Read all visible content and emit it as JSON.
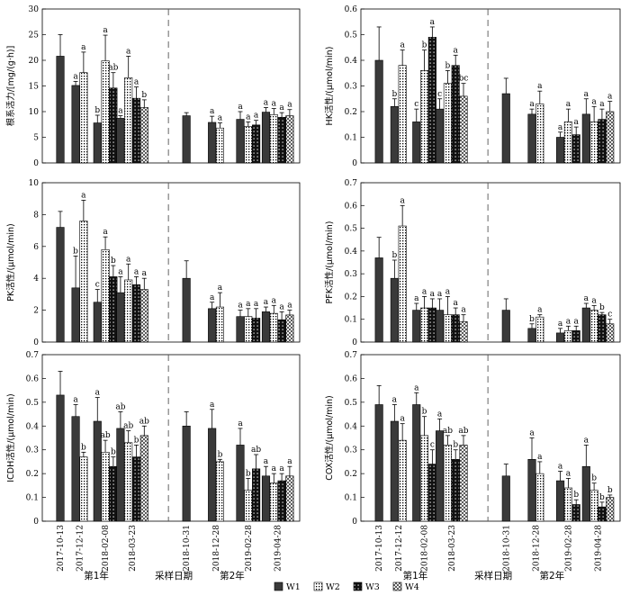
{
  "colors": {
    "W1": "#3a3a3a",
    "W2": "#ffffff",
    "W3": "#111111",
    "W4": "#ffffff"
  },
  "legend": [
    "W1",
    "W2",
    "W3",
    "W4"
  ],
  "dates": [
    "2017-10-13",
    "2017-12-12",
    "2018-02-08",
    "2018-03-23",
    "2018-10-31",
    "2018-12-28",
    "2019-02-28",
    "2019-04-28"
  ],
  "year_labels": [
    "第1年",
    "第2年"
  ],
  "xlabel": "采样日期",
  "chart_data": [
    {
      "type": "bar",
      "ylabel": "根系活力/[mg/(g·h)]",
      "ylim": [
        0,
        30
      ],
      "yticks": [
        0,
        5,
        10,
        15,
        20,
        25,
        30
      ],
      "categories": [
        "2017-10-13",
        "2017-12-12",
        "2018-02-08",
        "2018-03-23",
        "2018-10-31",
        "2018-12-28",
        "2019-02-28",
        "2019-04-28"
      ],
      "series": [
        {
          "name": "W1",
          "values": [
            20.8,
            15.1,
            7.8,
            8.7,
            9.2,
            7.9,
            8.5,
            9.9
          ],
          "errors": [
            4.2,
            0.8,
            1.5,
            0.5,
            0.6,
            1.2,
            1.5,
            0.9
          ],
          "letters": [
            "",
            "a",
            "b",
            "a",
            "",
            "a",
            "a",
            "a"
          ]
        },
        {
          "name": "W2",
          "values": [
            null,
            17.6,
            19.9,
            16.6,
            null,
            6.8,
            7.1,
            9.4
          ],
          "errors": [
            null,
            4.0,
            5.0,
            4.2,
            null,
            1.0,
            0.9,
            1.2
          ],
          "letters": [
            "",
            "a",
            "a",
            "a",
            "",
            "a",
            "a",
            "a"
          ]
        },
        {
          "name": "W3",
          "values": [
            null,
            null,
            14.6,
            12.6,
            null,
            null,
            7.4,
            8.9
          ],
          "errors": [
            null,
            null,
            3.0,
            2.2,
            null,
            null,
            0.9,
            0.9
          ],
          "letters": [
            "",
            "",
            "ab",
            "a",
            "",
            "",
            "a",
            "a"
          ]
        },
        {
          "name": "W4",
          "values": [
            null,
            null,
            null,
            10.8,
            null,
            null,
            null,
            9.2
          ],
          "errors": [
            null,
            null,
            null,
            1.5,
            null,
            null,
            null,
            1.2
          ],
          "letters": [
            "",
            "",
            "",
            "b",
            "",
            "",
            "",
            "a"
          ]
        }
      ]
    },
    {
      "type": "bar",
      "ylabel": "HK活性/(μmol/min)",
      "ylim": [
        0,
        0.6
      ],
      "yticks": [
        0,
        0.1,
        0.2,
        0.3,
        0.4,
        0.5,
        0.6
      ],
      "categories": [
        "2017-10-13",
        "2017-12-12",
        "2018-02-08",
        "2018-03-23",
        "2018-10-31",
        "2018-12-28",
        "2019-02-28",
        "2019-04-28"
      ],
      "series": [
        {
          "name": "W1",
          "values": [
            0.4,
            0.22,
            0.16,
            0.21,
            0.27,
            0.19,
            0.1,
            0.19
          ],
          "errors": [
            0.13,
            0.03,
            0.05,
            0.04,
            0.06,
            0.02,
            0.02,
            0.06
          ],
          "letters": [
            "",
            "b",
            "c",
            "c",
            "",
            "a",
            "a",
            "a"
          ]
        },
        {
          "name": "W2",
          "values": [
            null,
            0.38,
            0.36,
            0.31,
            null,
            0.23,
            0.16,
            0.16
          ],
          "errors": [
            null,
            0.06,
            0.08,
            0.05,
            null,
            0.05,
            0.05,
            0.06
          ],
          "letters": [
            "",
            "a",
            "b",
            "b",
            "",
            "a",
            "a",
            "a"
          ]
        },
        {
          "name": "W3",
          "values": [
            null,
            null,
            0.49,
            0.38,
            null,
            null,
            0.11,
            0.17
          ],
          "errors": [
            null,
            null,
            0.04,
            0.04,
            null,
            null,
            0.03,
            0.04
          ],
          "letters": [
            "",
            "",
            "a",
            "a",
            "",
            "",
            "a",
            "a"
          ]
        },
        {
          "name": "W4",
          "values": [
            null,
            null,
            null,
            0.26,
            null,
            null,
            null,
            0.2
          ],
          "errors": [
            null,
            null,
            null,
            0.05,
            null,
            null,
            null,
            0.04
          ],
          "letters": [
            "",
            "",
            "",
            "bc",
            "",
            "",
            "",
            "a"
          ]
        }
      ]
    },
    {
      "type": "bar",
      "ylabel": "PK活性/(μmol/min)",
      "ylim": [
        0,
        10
      ],
      "yticks": [
        0,
        2,
        4,
        6,
        8,
        10
      ],
      "categories": [
        "2017-10-13",
        "2017-12-12",
        "2018-02-08",
        "2018-03-23",
        "2018-10-31",
        "2018-12-28",
        "2019-02-28",
        "2019-04-28"
      ],
      "series": [
        {
          "name": "W1",
          "values": [
            7.2,
            3.4,
            2.5,
            3.1,
            4.0,
            2.1,
            1.6,
            1.9
          ],
          "errors": [
            1.0,
            2.0,
            0.8,
            1.0,
            1.1,
            0.4,
            0.4,
            0.3
          ],
          "letters": [
            "",
            "b",
            "c",
            "a",
            "",
            "a",
            "a",
            "a"
          ]
        },
        {
          "name": "W2",
          "values": [
            null,
            7.6,
            5.8,
            3.9,
            null,
            2.2,
            1.6,
            1.8
          ],
          "errors": [
            null,
            1.3,
            0.8,
            1.0,
            null,
            0.9,
            0.5,
            0.5
          ],
          "letters": [
            "",
            "a",
            "a",
            "a",
            "",
            "a",
            "a",
            "a"
          ]
        },
        {
          "name": "W3",
          "values": [
            null,
            null,
            4.1,
            3.6,
            null,
            null,
            1.5,
            1.4
          ],
          "errors": [
            null,
            null,
            0.7,
            0.5,
            null,
            null,
            0.6,
            0.5
          ],
          "letters": [
            "",
            "",
            "b",
            "a",
            "",
            "",
            "a",
            "a"
          ]
        },
        {
          "name": "W4",
          "values": [
            null,
            null,
            null,
            3.3,
            null,
            null,
            null,
            1.7
          ],
          "errors": [
            null,
            null,
            null,
            0.7,
            null,
            null,
            null,
            0.3
          ],
          "letters": [
            "",
            "",
            "",
            "a",
            "",
            "",
            "",
            "a"
          ]
        }
      ]
    },
    {
      "type": "bar",
      "ylabel": "PFK活性/(μmol/min)",
      "ylim": [
        0,
        0.7
      ],
      "yticks": [
        0,
        0.1,
        0.2,
        0.3,
        0.4,
        0.5,
        0.6,
        0.7
      ],
      "categories": [
        "2017-10-13",
        "2017-12-12",
        "2018-02-08",
        "2018-03-23",
        "2018-10-31",
        "2018-12-28",
        "2019-02-28",
        "2019-04-28"
      ],
      "series": [
        {
          "name": "W1",
          "values": [
            0.37,
            0.28,
            0.14,
            0.14,
            0.14,
            0.06,
            0.04,
            0.15
          ],
          "errors": [
            0.09,
            0.08,
            0.03,
            0.05,
            0.05,
            0.02,
            0.02,
            0.02
          ],
          "letters": [
            "",
            "b",
            "a",
            "a",
            "",
            "b",
            "a",
            "a"
          ]
        },
        {
          "name": "W2",
          "values": [
            null,
            0.51,
            0.15,
            0.12,
            null,
            0.11,
            0.05,
            0.14
          ],
          "errors": [
            null,
            0.09,
            0.05,
            0.08,
            null,
            0.01,
            0.02,
            0.02
          ],
          "letters": [
            "",
            "a",
            "a",
            "a",
            "",
            "a",
            "a",
            "a"
          ]
        },
        {
          "name": "W3",
          "values": [
            null,
            null,
            0.15,
            0.12,
            null,
            null,
            0.05,
            0.12
          ],
          "errors": [
            null,
            null,
            0.04,
            0.03,
            null,
            null,
            0.02,
            0.01
          ],
          "letters": [
            "",
            "",
            "a",
            "a",
            "",
            "",
            "a",
            "b"
          ]
        },
        {
          "name": "W4",
          "values": [
            null,
            null,
            null,
            0.09,
            null,
            null,
            null,
            0.08
          ],
          "errors": [
            null,
            null,
            null,
            0.03,
            null,
            null,
            null,
            0.02
          ],
          "letters": [
            "",
            "",
            "",
            "a",
            "",
            "",
            "",
            "c"
          ]
        }
      ]
    },
    {
      "type": "bar",
      "ylabel": "ICDH活性/(μmol/min)",
      "ylim": [
        0,
        0.7
      ],
      "yticks": [
        0,
        0.1,
        0.2,
        0.3,
        0.4,
        0.5,
        0.6,
        0.7
      ],
      "categories": [
        "2017-10-13",
        "2017-12-12",
        "2018-02-08",
        "2018-03-23",
        "2018-10-31",
        "2018-12-28",
        "2019-02-28",
        "2019-04-28"
      ],
      "series": [
        {
          "name": "W1",
          "values": [
            0.53,
            0.44,
            0.42,
            0.39,
            0.4,
            0.39,
            0.32,
            0.19
          ],
          "errors": [
            0.1,
            0.05,
            0.1,
            0.07,
            0.06,
            0.08,
            0.07,
            0.04
          ],
          "letters": [
            "",
            "a",
            "a",
            "ab",
            "",
            "a",
            "a",
            "a"
          ]
        },
        {
          "name": "W2",
          "values": [
            null,
            0.27,
            0.29,
            0.33,
            null,
            0.25,
            0.13,
            0.16
          ],
          "errors": [
            null,
            0.02,
            0.05,
            0.05,
            null,
            0.01,
            0.05,
            0.04
          ],
          "letters": [
            "",
            "b",
            "ab",
            "ab",
            "",
            "b",
            "b",
            "a"
          ]
        },
        {
          "name": "W3",
          "values": [
            null,
            null,
            0.23,
            0.27,
            null,
            null,
            0.22,
            0.17
          ],
          "errors": [
            null,
            null,
            0.04,
            0.05,
            null,
            null,
            0.06,
            0.03
          ],
          "letters": [
            "",
            "",
            "b",
            "b",
            "",
            "",
            "ab",
            "a"
          ]
        },
        {
          "name": "W4",
          "values": [
            null,
            null,
            null,
            0.36,
            null,
            null,
            null,
            0.19
          ],
          "errors": [
            null,
            null,
            null,
            0.04,
            null,
            null,
            null,
            0.04
          ],
          "letters": [
            "",
            "",
            "",
            "ab",
            "",
            "",
            "",
            "a"
          ]
        }
      ]
    },
    {
      "type": "bar",
      "ylabel": "COX活性/(μmol/min)",
      "ylim": [
        0,
        0.7
      ],
      "yticks": [
        0,
        0.1,
        0.2,
        0.3,
        0.4,
        0.5,
        0.6,
        0.7
      ],
      "categories": [
        "2017-10-13",
        "2017-12-12",
        "2018-02-08",
        "2018-03-23",
        "2018-10-31",
        "2018-12-28",
        "2019-02-28",
        "2019-04-28"
      ],
      "series": [
        {
          "name": "W1",
          "values": [
            0.49,
            0.42,
            0.49,
            0.38,
            0.19,
            0.26,
            0.17,
            0.23
          ],
          "errors": [
            0.08,
            0.07,
            0.05,
            0.05,
            0.05,
            0.09,
            0.04,
            0.09
          ],
          "letters": [
            "",
            "a",
            "a",
            "a",
            "",
            "a",
            "a",
            "a"
          ]
        },
        {
          "name": "W2",
          "values": [
            null,
            0.34,
            0.36,
            0.32,
            null,
            0.2,
            0.14,
            0.13
          ],
          "errors": [
            null,
            0.07,
            0.08,
            0.04,
            null,
            0.05,
            0.04,
            0.03
          ],
          "letters": [
            "",
            "a",
            "b",
            "ab",
            "",
            "a",
            "a",
            "b"
          ]
        },
        {
          "name": "W3",
          "values": [
            null,
            null,
            0.24,
            0.26,
            null,
            null,
            0.07,
            0.06
          ],
          "errors": [
            null,
            null,
            0.06,
            0.04,
            null,
            null,
            0.02,
            0.02
          ],
          "letters": [
            "",
            "",
            "c",
            "b",
            "",
            "",
            "b",
            "b"
          ]
        },
        {
          "name": "W4",
          "values": [
            null,
            null,
            null,
            0.32,
            null,
            null,
            null,
            0.1
          ],
          "errors": [
            null,
            null,
            null,
            0.04,
            null,
            null,
            null,
            0.01
          ],
          "letters": [
            "",
            "",
            "",
            "ab",
            "",
            "",
            "",
            "b"
          ]
        }
      ]
    }
  ]
}
